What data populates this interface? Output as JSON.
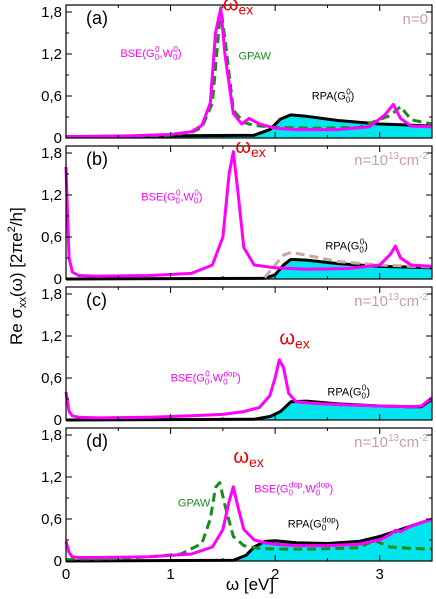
{
  "chart_data": {
    "type": "line",
    "xlabel": "ω [eV]",
    "ylabel": "Re σxx(ω) [2πe²/h]",
    "xlim": [
      0,
      3.5
    ],
    "ylim": [
      0,
      1.9
    ],
    "x_ticks": [
      "0",
      "1",
      "2",
      "3"
    ],
    "y_ticks": [
      "0",
      "0,6",
      "1,2",
      "1,8"
    ],
    "colors": {
      "bse": "#ff00ff",
      "gpaw": "#1a8c1a",
      "rpa": "#000000",
      "rpa_fill": "#00e5ee",
      "dashed_tan": "#c8a8a0",
      "omega_ex": "#ee0000",
      "n_label": "#c8a0a0"
    },
    "panels": [
      {
        "id": "a",
        "label": "(a)",
        "n_text": "n=0",
        "omega_ex": {
          "text": "ω",
          "sub": "ex",
          "x": 1.5,
          "y": 1.82
        },
        "curve_labels": [
          {
            "text": "BSE(G",
            "sub1": "0",
            "sup1": "0",
            "mid": ",W",
            "sub2": "0",
            "sup2": "0",
            "end": ")",
            "x": 0.52,
            "y": 1.16,
            "color": "#ff00ff"
          },
          {
            "text": "GPAW",
            "x": 1.65,
            "y": 1.12,
            "color": "#1a8c1a"
          },
          {
            "text": "RPA(G",
            "sub1": "0",
            "sup1": "0",
            "end": ")",
            "x": 2.35,
            "y": 0.55,
            "color": "#000000"
          }
        ],
        "series": [
          {
            "name": "RPA(G0^0)",
            "role": "rpa",
            "x": [
              0,
              1.8,
              1.95,
              2.05,
              2.15,
              2.3,
              2.6,
              3.0,
              3.2,
              3.5
            ],
            "y": [
              0.02,
              0.04,
              0.12,
              0.27,
              0.33,
              0.31,
              0.25,
              0.2,
              0.19,
              0.17
            ]
          },
          {
            "name": "BSE(G0^0,W0^0)",
            "role": "bse",
            "x": [
              0,
              0.2,
              0.6,
              1.0,
              1.2,
              1.3,
              1.38,
              1.43,
              1.48,
              1.52,
              1.6,
              1.68,
              1.75,
              1.85,
              2.0,
              2.2,
              2.6,
              2.9,
              3.05,
              3.13,
              3.2,
              3.3,
              3.5
            ],
            "y": [
              0.02,
              0.02,
              0.03,
              0.05,
              0.09,
              0.18,
              0.5,
              1.5,
              1.85,
              1.2,
              0.35,
              0.2,
              0.28,
              0.2,
              0.14,
              0.12,
              0.12,
              0.16,
              0.33,
              0.48,
              0.28,
              0.17,
              0.16
            ]
          },
          {
            "name": "GPAW",
            "role": "gpaw",
            "dashed": true,
            "x": [
              0,
              0.5,
              1.0,
              1.2,
              1.3,
              1.4,
              1.48,
              1.53,
              1.6,
              1.7,
              1.8,
              2.0,
              2.4,
              2.8,
              3.1,
              3.2,
              3.3,
              3.5
            ],
            "y": [
              0.02,
              0.02,
              0.04,
              0.08,
              0.15,
              0.5,
              1.86,
              1.3,
              0.4,
              0.22,
              0.18,
              0.15,
              0.14,
              0.15,
              0.32,
              0.45,
              0.26,
              0.2
            ]
          }
        ]
      },
      {
        "id": "b",
        "label": "(b)",
        "n_text": "n=10",
        "n_sup": "13",
        "n_unit": "cm",
        "n_unit_sup": "-2",
        "omega_ex": {
          "text": "ω",
          "sub": "ex",
          "x": 1.62,
          "y": 1.8
        },
        "curve_labels": [
          {
            "text": "BSE(G",
            "sub1": "0",
            "sup1": "0",
            "mid": ",W",
            "sub2": "0",
            "sup2": "0",
            "end": ")",
            "x": 0.72,
            "y": 1.12,
            "color": "#ff00ff"
          },
          {
            "text": "RPA(G",
            "sub1": "0",
            "sup1": "0",
            "end": ")",
            "x": 2.48,
            "y": 0.42,
            "color": "#000000"
          }
        ],
        "series": [
          {
            "name": "RPA(G0^0)",
            "role": "rpa",
            "x": [
              0,
              1.9,
              2.0,
              2.08,
              2.15,
              2.3,
              2.6,
              3.0,
              3.5
            ],
            "y": [
              0,
              0.01,
              0.06,
              0.2,
              0.28,
              0.27,
              0.22,
              0.18,
              0.16
            ]
          },
          {
            "name": "tan dashed",
            "role": "dashed_tan",
            "dashed": true,
            "x": [
              1.9,
              2.0,
              2.08,
              2.15,
              2.3,
              2.6,
              3.0,
              3.5
            ],
            "y": [
              0.02,
              0.2,
              0.34,
              0.38,
              0.34,
              0.25,
              0.2,
              0.17
            ]
          },
          {
            "name": "BSE(G0^0,W0^0)",
            "role": "bse",
            "x": [
              0,
              0.015,
              0.03,
              0.06,
              0.12,
              0.3,
              0.8,
              1.2,
              1.4,
              1.5,
              1.56,
              1.6,
              1.64,
              1.7,
              1.8,
              2.0,
              2.3,
              2.7,
              3.0,
              3.1,
              3.15,
              3.2,
              3.3,
              3.5
            ],
            "y": [
              1.6,
              0.9,
              0.3,
              0.1,
              0.05,
              0.04,
              0.05,
              0.08,
              0.2,
              0.6,
              1.5,
              1.82,
              1.3,
              0.45,
              0.2,
              0.16,
              0.14,
              0.15,
              0.2,
              0.35,
              0.47,
              0.3,
              0.2,
              0.18
            ]
          }
        ]
      },
      {
        "id": "c",
        "label": "(c)",
        "n_text": "n=10",
        "n_sup": "13",
        "n_unit": "cm",
        "n_unit_sup": "-2",
        "omega_ex": {
          "text": "ω",
          "sub": "ex",
          "x": 2.04,
          "y": 1.08
        },
        "curve_labels": [
          {
            "text": "BSE(G",
            "sub1": "0",
            "sup1": "0",
            "mid": ",W",
            "sub2": "0",
            "sup2": "dop",
            "end": ")",
            "x": 1.0,
            "y": 0.55,
            "color": "#ff00ff"
          },
          {
            "text": "RPA(G",
            "sub1": "0",
            "sup1": "0",
            "end": ")",
            "x": 2.5,
            "y": 0.35,
            "color": "#000000"
          }
        ],
        "series": [
          {
            "name": "RPA(G0^0)",
            "role": "rpa",
            "x": [
              0,
              1.8,
              1.95,
              2.05,
              2.15,
              2.3,
              2.6,
              3.0,
              3.3,
              3.4,
              3.5
            ],
            "y": [
              0,
              0.01,
              0.05,
              0.12,
              0.26,
              0.27,
              0.23,
              0.2,
              0.19,
              0.19,
              0.3
            ]
          },
          {
            "name": "BSE(G0^0,W0^dop)",
            "role": "bse",
            "x": [
              0,
              0.015,
              0.03,
              0.06,
              0.12,
              0.3,
              0.8,
              1.2,
              1.5,
              1.7,
              1.85,
              1.95,
              2.0,
              2.04,
              2.08,
              2.13,
              2.2,
              2.35,
              2.6,
              3.0,
              3.3,
              3.4,
              3.5
            ],
            "y": [
              0.4,
              0.25,
              0.12,
              0.06,
              0.04,
              0.03,
              0.04,
              0.06,
              0.08,
              0.12,
              0.18,
              0.35,
              0.6,
              0.86,
              0.75,
              0.38,
              0.26,
              0.24,
              0.22,
              0.2,
              0.19,
              0.2,
              0.32
            ]
          }
        ]
      },
      {
        "id": "d",
        "label": "(d)",
        "n_text": "n=10",
        "n_sup": "13",
        "n_unit": "cm",
        "n_unit_sup": "-2",
        "omega_ex": {
          "text": "ω",
          "sub": "ex",
          "x": 1.6,
          "y": 1.4
        },
        "curve_labels": [
          {
            "text": "GPAW",
            "x": 1.07,
            "y": 0.78,
            "color": "#1a8c1a"
          },
          {
            "text": "BSE(G",
            "sub1": "0",
            "sup1": "dop",
            "mid": ",W",
            "sub2": "0",
            "sup2": "dop",
            "end": ")",
            "x": 1.8,
            "y": 0.98,
            "color": "#ff00ff"
          },
          {
            "text": "RPA(G",
            "sub1": "0",
            "sup1": "dop",
            "end": ")",
            "x": 2.12,
            "y": 0.48,
            "color": "#000000"
          }
        ],
        "series": [
          {
            "name": "RPA(G0^dop)",
            "role": "rpa",
            "x": [
              0,
              1.6,
              1.72,
              1.8,
              1.9,
              2.0,
              2.2,
              2.5,
              2.8,
              3.0,
              3.2,
              3.3,
              3.5
            ],
            "y": [
              0,
              0.01,
              0.08,
              0.2,
              0.28,
              0.29,
              0.26,
              0.25,
              0.28,
              0.35,
              0.45,
              0.5,
              0.6
            ]
          },
          {
            "name": "BSE(G0^dop,W0^dop)",
            "role": "bse",
            "x": [
              0,
              0.015,
              0.03,
              0.06,
              0.12,
              0.3,
              0.8,
              1.2,
              1.4,
              1.5,
              1.56,
              1.6,
              1.64,
              1.7,
              1.8,
              1.9,
              2.0,
              2.2,
              2.5,
              2.8,
              3.0,
              3.1,
              3.15,
              3.2,
              3.3,
              3.5
            ],
            "y": [
              0.28,
              0.2,
              0.12,
              0.06,
              0.05,
              0.05,
              0.06,
              0.1,
              0.2,
              0.45,
              0.85,
              1.06,
              0.8,
              0.45,
              0.3,
              0.26,
              0.24,
              0.22,
              0.22,
              0.24,
              0.3,
              0.38,
              0.44,
              0.42,
              0.5,
              0.6
            ]
          },
          {
            "name": "GPAW",
            "role": "gpaw",
            "dashed": true,
            "x": [
              0,
              0.4,
              0.8,
              1.1,
              1.3,
              1.38,
              1.43,
              1.47,
              1.52,
              1.6,
              1.7,
              1.85,
              2.0,
              2.4,
              2.8,
              2.9,
              2.95,
              3.0,
              3.1,
              3.3,
              3.5
            ],
            "y": [
              0.02,
              0.03,
              0.06,
              0.1,
              0.25,
              0.6,
              1.05,
              1.12,
              0.8,
              0.35,
              0.22,
              0.18,
              0.17,
              0.17,
              0.19,
              0.26,
              0.3,
              0.26,
              0.2,
              0.18,
              0.17
            ]
          }
        ]
      }
    ]
  }
}
